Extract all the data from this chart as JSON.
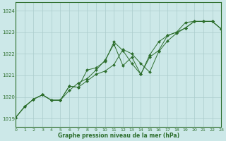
{
  "title": "",
  "xlabel": "Graphe pression niveau de la mer (hPa)",
  "bg_color": "#cce8e8",
  "grid_color": "#aacccc",
  "line_color": "#2d6e2d",
  "marker_color": "#2d6e2d",
  "xlim": [
    0,
    23
  ],
  "ylim": [
    1018.6,
    1024.4
  ],
  "yticks": [
    1019,
    1020,
    1021,
    1022,
    1023,
    1024
  ],
  "xticks": [
    0,
    1,
    2,
    3,
    4,
    5,
    6,
    7,
    8,
    9,
    10,
    11,
    12,
    13,
    14,
    15,
    16,
    17,
    18,
    19,
    20,
    21,
    22,
    23
  ],
  "series": [
    [
      1019.05,
      1019.55,
      1019.9,
      1020.1,
      1019.85,
      1019.85,
      1020.3,
      1020.65,
      1020.85,
      1021.25,
      1021.7,
      1022.45,
      1021.45,
      1021.85,
      1021.05,
      1021.95,
      1022.55,
      1022.85,
      1023.0,
      1023.2,
      1023.5,
      1023.5,
      1023.5,
      1023.15
    ],
    [
      1019.05,
      1019.55,
      1019.9,
      1020.1,
      1019.85,
      1019.85,
      1020.5,
      1020.45,
      1021.25,
      1021.35,
      1021.65,
      1022.55,
      1022.15,
      1021.55,
      1021.05,
      1021.85,
      1022.15,
      1022.85,
      1023.0,
      1023.45,
      1023.5,
      1023.5,
      1023.5,
      1023.15
    ],
    [
      1019.05,
      1019.55,
      1019.9,
      1020.1,
      1019.85,
      1019.85,
      1020.5,
      1020.45,
      1020.75,
      1021.05,
      1021.2,
      1021.5,
      1022.2,
      1022.0,
      1021.55,
      1021.15,
      1022.1,
      1022.6,
      1022.95,
      1023.2,
      1023.5,
      1023.5,
      1023.5,
      1023.15
    ]
  ]
}
